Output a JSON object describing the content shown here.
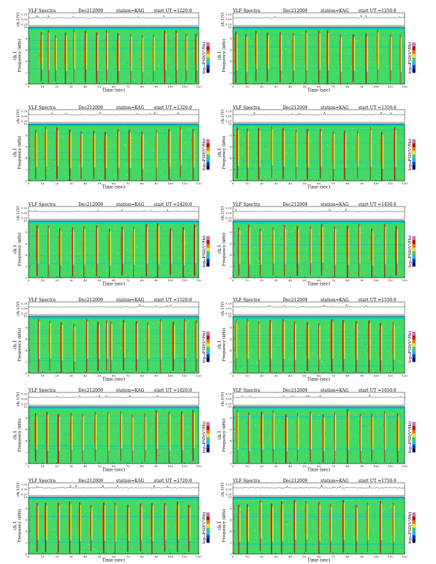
{
  "header": {
    "product": "VLF Spectra",
    "date": "Dec212009",
    "station": "station=KAG",
    "ut_prefix": "start  UT  ="
  },
  "axes": {
    "strip_ylabel": "ch.1(V)",
    "strip_ticks": [
      "0.20",
      "0.00",
      "-0.20"
    ],
    "spec_ylabel_top": "ch.1",
    "spec_ylabel": "Frequency  (kHz)",
    "spec_ticks": [
      "10",
      "8",
      "6",
      "4",
      "2",
      "0"
    ],
    "xlabel": "Time  (sec)",
    "x_ticks": [
      "0",
      "10",
      "20",
      "30",
      "40",
      "50",
      "60",
      "70",
      "80",
      "90",
      "100",
      "110",
      "120"
    ],
    "colorbar_label": "log₁₀PSD(V²/Hz)",
    "colorbar_ticks": [
      "-",
      "-"
    ]
  },
  "colors": {
    "background": "#00c8c8",
    "base": "#44d966",
    "moderate": "#e6f23a",
    "strong": "#e07a10",
    "peak": "#b01818",
    "low": "#2a6cf0",
    "colormap": [
      "#000066",
      "#0033ff",
      "#00ccff",
      "#33dd66",
      "#ffee33",
      "#ff7700",
      "#cc0000",
      "#ff66cc"
    ]
  },
  "chart_data": [
    {
      "type": "heatmap",
      "title": "VLF Spectra  Dec212009  station=KAG  start  UT  =1220:0",
      "start_ut": "1220:0",
      "xlabel": "Time  (sec)",
      "ylabel": "Frequency  (kHz)",
      "xlim": [
        0,
        120
      ],
      "ylim": [
        0,
        10
      ],
      "strip_ylim": [
        -0.2,
        0.2
      ],
      "bursts_sec": [
        9,
        14,
        19,
        26,
        32,
        40,
        48,
        55,
        63,
        72,
        80,
        88,
        96,
        104,
        111,
        118
      ]
    },
    {
      "type": "heatmap",
      "title": "VLF Spectra  Dec212009  station=KAG  start  UT  =1250:0",
      "start_ut": "1250:0",
      "xlabel": "Time  (sec)",
      "ylabel": "Frequency  (kHz)",
      "xlim": [
        0,
        120
      ],
      "ylim": [
        0,
        10
      ],
      "strip_ylim": [
        -0.2,
        0.2
      ],
      "bursts_sec": [
        2,
        9,
        16,
        24,
        33,
        42,
        51,
        60,
        66,
        75,
        84,
        93,
        101,
        110,
        117
      ]
    },
    {
      "type": "heatmap",
      "title": "VLF Spectra  Dec212009  station=KAG  start  UT  =1320:0",
      "start_ut": "1320:0",
      "xlabel": "Time  (sec)",
      "ylabel": "Frequency  (kHz)",
      "xlim": [
        0,
        120
      ],
      "ylim": [
        0,
        10
      ],
      "strip_ylim": [
        -0.2,
        0.2
      ],
      "bursts_sec": [
        5,
        12,
        20,
        29,
        37,
        46,
        54,
        63,
        71,
        80,
        90,
        99,
        107,
        116
      ]
    },
    {
      "type": "heatmap",
      "title": "VLF Spectra  Dec212009  station=KAG  start  UT  =1350:0",
      "start_ut": "1350:0",
      "xlabel": "Time  (sec)",
      "ylabel": "Frequency  (kHz)",
      "xlim": [
        0,
        120
      ],
      "ylim": [
        0,
        10
      ],
      "strip_ylim": [
        -0.2,
        0.2
      ],
      "bursts_sec": [
        3,
        10,
        18,
        27,
        35,
        44,
        52,
        61,
        70,
        78,
        87,
        96,
        104,
        113
      ]
    },
    {
      "type": "heatmap",
      "title": "VLF Spectra  Dec212009  station=KAG  start  UT  =1420:0",
      "start_ut": "1420:0",
      "xlabel": "Time  (sec)",
      "ylabel": "Frequency  (kHz)",
      "xlim": [
        0,
        120
      ],
      "ylim": [
        0,
        10
      ],
      "strip_ylim": [
        -0.2,
        0.2
      ],
      "bursts_sec": [
        6,
        14,
        22,
        31,
        39,
        48,
        57,
        66,
        74,
        83,
        91,
        100,
        109,
        117
      ]
    },
    {
      "type": "heatmap",
      "title": "VLF Spectra  Dec212009  station=KAG  start  UT  =1450:0",
      "start_ut": "1450:0",
      "xlabel": "Time  (sec)",
      "ylabel": "Frequency  (kHz)",
      "xlim": [
        0,
        120
      ],
      "ylim": [
        0,
        10
      ],
      "strip_ylim": [
        -0.2,
        0.2
      ],
      "bursts_sec": [
        4,
        11,
        19,
        28,
        36,
        45,
        54,
        62,
        71,
        80,
        88,
        97,
        106,
        114
      ]
    },
    {
      "type": "heatmap",
      "title": "VLF Spectra  Dec212009  station=KAG  start  UT  =1520:0",
      "start_ut": "1520:0",
      "xlabel": "Time  (sec)",
      "ylabel": "Frequency  (kHz)",
      "xlim": [
        0,
        120
      ],
      "ylim": [
        0,
        10
      ],
      "strip_ylim": [
        -0.2,
        0.2
      ],
      "bursts_sec": [
        7,
        15,
        23,
        32,
        41,
        49,
        55,
        58,
        67,
        76,
        84,
        93,
        102,
        110,
        118
      ]
    },
    {
      "type": "heatmap",
      "title": "VLF Spectra  Dec212009  station=KAG  start  UT  =1550:0",
      "start_ut": "1550:0",
      "xlabel": "Time  (sec)",
      "ylabel": "Frequency  (kHz)",
      "xlim": [
        0,
        120
      ],
      "ylim": [
        0,
        10
      ],
      "strip_ylim": [
        -0.2,
        0.2
      ],
      "bursts_sec": [
        2,
        10,
        18,
        26,
        35,
        43,
        52,
        60,
        69,
        77,
        86,
        95,
        103,
        112
      ]
    },
    {
      "type": "heatmap",
      "title": "VLF Spectra  Dec212009  station=KAG  start  UT  =1620:0",
      "start_ut": "1620:0",
      "xlabel": "Time  (sec)",
      "ylabel": "Frequency  (kHz)",
      "xlim": [
        0,
        120
      ],
      "ylim": [
        0,
        10
      ],
      "strip_ylim": [
        -0.2,
        0.2
      ],
      "bursts_sec": [
        5,
        13,
        21,
        30,
        38,
        47,
        56,
        65,
        73,
        82,
        90,
        99,
        108,
        116
      ]
    },
    {
      "type": "heatmap",
      "title": "VLF Spectra  Dec212009  station=KAG  start  UT  =1650:0",
      "start_ut": "1650:0",
      "xlabel": "Time  (sec)",
      "ylabel": "Frequency  (kHz)",
      "xlim": [
        0,
        120
      ],
      "ylim": [
        0,
        10
      ],
      "strip_ylim": [
        -0.2,
        0.2
      ],
      "bursts_sec": [
        3,
        11,
        20,
        28,
        37,
        45,
        54,
        63,
        71,
        80,
        89,
        97,
        106,
        115
      ]
    },
    {
      "type": "heatmap",
      "title": "VLF Spectra  Dec212009  station=KAG  start  UT  =1720:0",
      "start_ut": "1720:0",
      "xlabel": "Time  (sec)",
      "ylabel": "Frequency  (kHz)",
      "xlim": [
        0,
        120
      ],
      "ylim": [
        0,
        10
      ],
      "strip_ylim": [
        -0.2,
        0.2
      ],
      "bursts_sec": [
        6,
        12,
        21,
        29,
        36,
        44,
        53,
        61,
        70,
        79,
        87,
        96,
        105,
        113
      ]
    },
    {
      "type": "heatmap",
      "title": "VLF Spectra  Dec212009  station=KAG  start  UT  =1750:0",
      "start_ut": "1750:0",
      "xlabel": "Time  (sec)",
      "ylabel": "Frequency  (kHz)",
      "xlim": [
        0,
        120
      ],
      "ylim": [
        0,
        10
      ],
      "strip_ylim": [
        -0.2,
        0.2
      ],
      "bursts_sec": [
        4,
        10,
        19,
        27,
        34,
        43,
        51,
        60,
        68,
        77,
        86,
        94,
        103,
        112
      ]
    }
  ]
}
